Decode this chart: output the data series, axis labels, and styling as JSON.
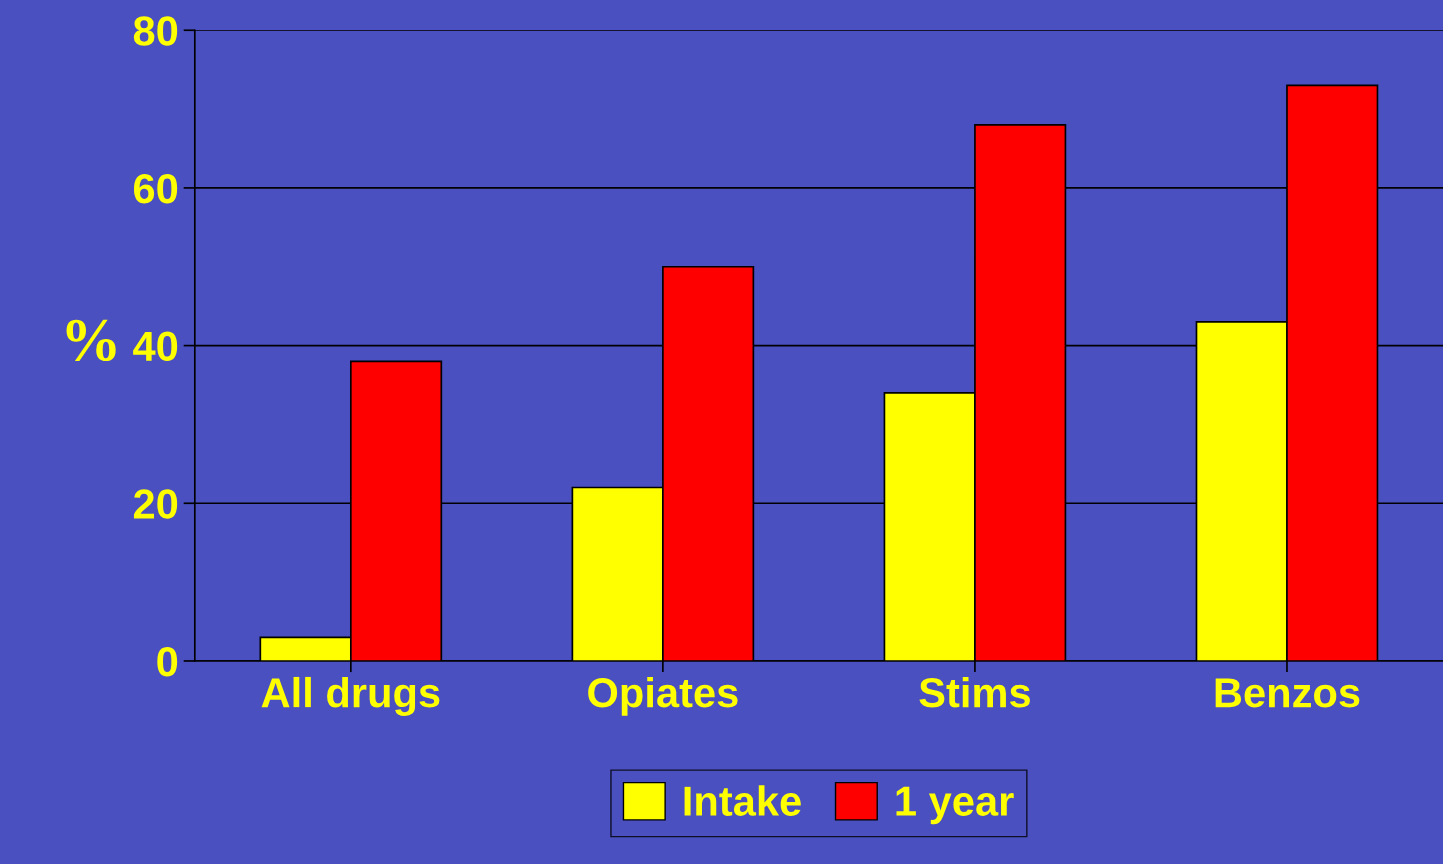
{
  "chart_data": {
    "type": "bar",
    "ylabel": "%",
    "categories": [
      "All drugs",
      "Opiates",
      "Stims",
      "Benzos"
    ],
    "series": [
      {
        "name": "Intake",
        "color": "#ffff00",
        "values": [
          3,
          22,
          34,
          43
        ]
      },
      {
        "name": "1 year",
        "color": "#ff0000",
        "values": [
          38,
          50,
          68,
          73
        ]
      }
    ],
    "ylim": [
      0,
      80
    ],
    "yticks": [
      0,
      20,
      40,
      60,
      80
    ],
    "grid": "y",
    "legend": "bottom"
  }
}
